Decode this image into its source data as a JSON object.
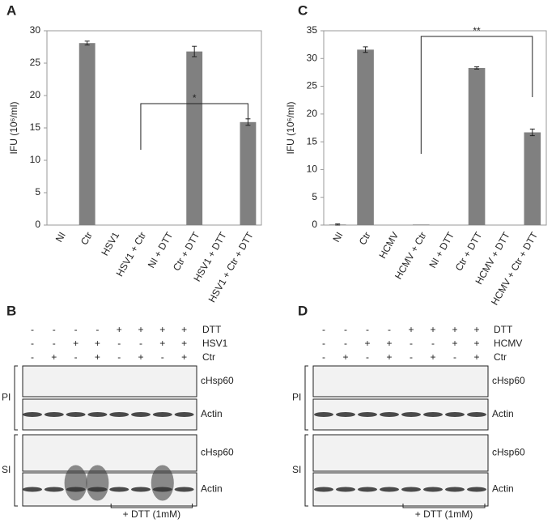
{
  "chart_data": [
    {
      "type": "bar",
      "panel": "A",
      "ylabel": "IFU (10⁶/ml)",
      "categories": [
        "NI",
        "Ctr",
        "HSV1",
        "HSV1 + Ctr",
        "NI + DTT",
        "Ctr + DTT",
        "HSV1 + DTT",
        "HSV1 + Ctr + DTT"
      ],
      "values": [
        0,
        28.1,
        0,
        0,
        0,
        26.8,
        0,
        15.9
      ],
      "errors": [
        0,
        0.3,
        0,
        0,
        0,
        0.8,
        0,
        0.5
      ],
      "color": "#808080",
      "ylim": [
        0,
        30
      ],
      "yticks": [
        0,
        5,
        10,
        15,
        20,
        25,
        30
      ],
      "annotation": "*"
    },
    {
      "type": "bar",
      "panel": "C",
      "ylabel": "IFU (10⁶/ml)",
      "categories": [
        "NI",
        "Ctr",
        "HCMV",
        "HCMV + Ctr",
        "NI + DTT",
        "Ctr + DTT",
        "HCMV + DTT",
        "HCMV + Ctr + DTT"
      ],
      "values": [
        0.1,
        31.6,
        0,
        0.1,
        0,
        28.3,
        0,
        16.7
      ],
      "errors": [
        0.1,
        0.5,
        0,
        0,
        0,
        0.2,
        0,
        0.6
      ],
      "color": "#808080",
      "ylim": [
        0,
        35
      ],
      "yticks": [
        0,
        5,
        10,
        15,
        20,
        25,
        30,
        35
      ],
      "annotation": "**"
    }
  ],
  "blots": [
    {
      "panel": "B",
      "conditions": [
        {
          "name": "DTT",
          "signs": [
            "-",
            "-",
            "-",
            "-",
            "+",
            "+",
            "+",
            "+"
          ]
        },
        {
          "name": "HSV1",
          "signs": [
            "-",
            "-",
            "+",
            "+",
            "-",
            "-",
            "+",
            "+"
          ]
        },
        {
          "name": "Ctr",
          "signs": [
            "-",
            "+",
            "-",
            "+",
            "-",
            "+",
            "-",
            "+"
          ]
        }
      ],
      "sections": [
        {
          "label": "PI",
          "bands": [
            "cHsp60",
            "Actin"
          ]
        },
        {
          "label": "SI",
          "bands": [
            "cHsp60",
            "Actin"
          ]
        }
      ],
      "footer": "+ DTT (1mM)"
    },
    {
      "panel": "D",
      "conditions": [
        {
          "name": "DTT",
          "signs": [
            "-",
            "-",
            "-",
            "-",
            "+",
            "+",
            "+",
            "+"
          ]
        },
        {
          "name": "HCMV",
          "signs": [
            "-",
            "-",
            "+",
            "+",
            "-",
            "-",
            "+",
            "+"
          ]
        },
        {
          "name": "Ctr",
          "signs": [
            "-",
            "+",
            "-",
            "+",
            "-",
            "+",
            "-",
            "+"
          ]
        }
      ],
      "sections": [
        {
          "label": "PI",
          "bands": [
            "cHsp60",
            "Actin"
          ]
        },
        {
          "label": "SI",
          "bands": [
            "cHsp60",
            "Actin"
          ]
        }
      ],
      "footer": "+ DTT (1mM)"
    }
  ]
}
